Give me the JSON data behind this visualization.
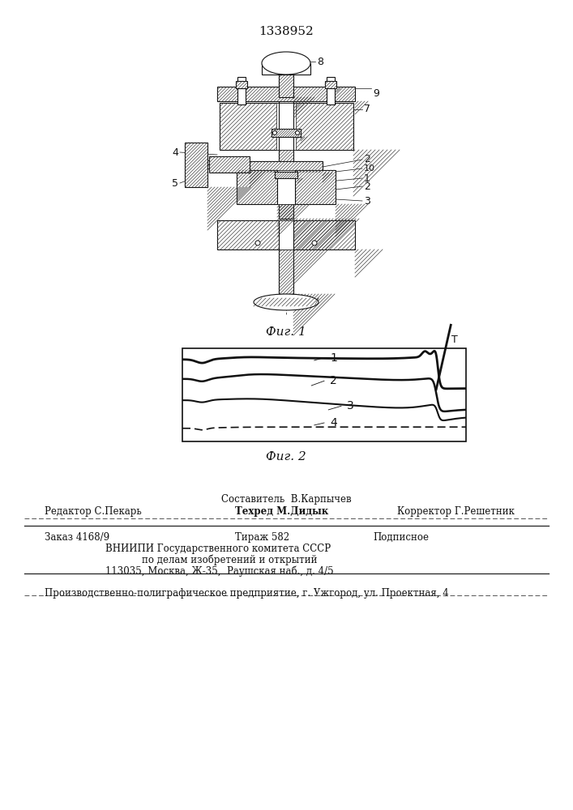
{
  "patent_number": "1338952",
  "fig1_caption": "Фиг. 1",
  "fig2_caption": "Фиг. 2",
  "footer_line1": "Составитель  В.Карпычев",
  "footer_line2_left": "Редактор С.Пекарь",
  "footer_line2_mid": "Техред М.Дидык",
  "footer_line2_right": "Корректор Г.Решетник",
  "footer_line3_left": "Заказ 4168/9",
  "footer_line3_mid": "Тираж 582",
  "footer_line3_right": "Подписное",
  "footer_line4": "ВНИИПИ Государственного комитета СССР",
  "footer_line5": "по делам изобретений и открытий",
  "footer_line6": "113035, Москва, Ж-35,  Раушская наб., д. 4/5",
  "footer_line7": "Производственно-полиграфическое предприятие, г. Ужгород, ул. Проектная, 4",
  "bg_color": "#ffffff",
  "text_color": "#111111",
  "line_color": "#111111",
  "hatch_color": "#444444"
}
